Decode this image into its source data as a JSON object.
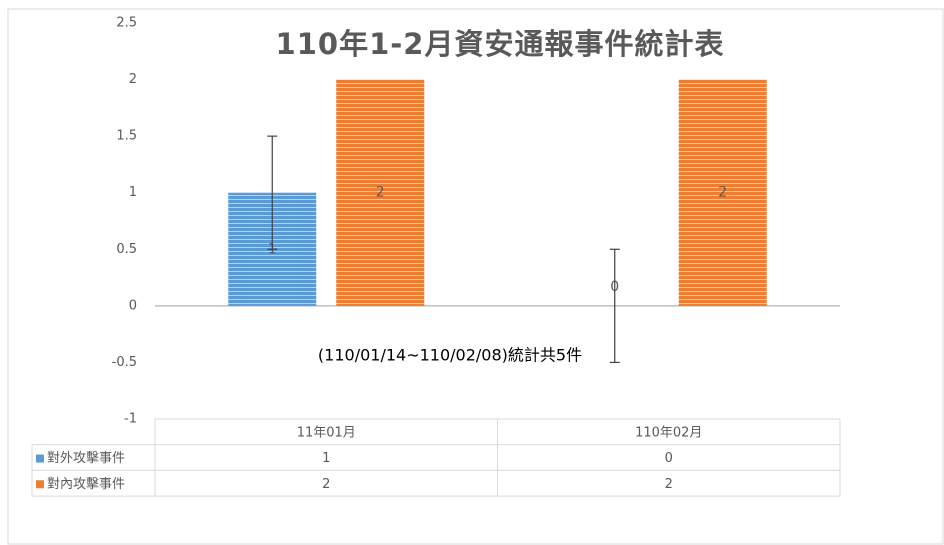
{
  "chart_data": {
    "type": "bar",
    "title": "110年1-2月資安通報事件統計表",
    "annotation": "(110/01/14~110/02/08)統計共5件",
    "categories": [
      "11年01月",
      "110年02月"
    ],
    "series": [
      {
        "name": "對外攻擊事件",
        "color": "#5b9bd5",
        "values": [
          1,
          0
        ],
        "errors": [
          0.5,
          0.5
        ]
      },
      {
        "name": "對內攻擊事件",
        "color": "#ed7d31",
        "values": [
          2,
          2
        ]
      }
    ],
    "ylim": [
      -1,
      2.5
    ],
    "yticks": [
      -1,
      -0.5,
      0,
      0.5,
      1,
      1.5,
      2,
      2.5
    ],
    "grid": false,
    "data_table": true
  }
}
